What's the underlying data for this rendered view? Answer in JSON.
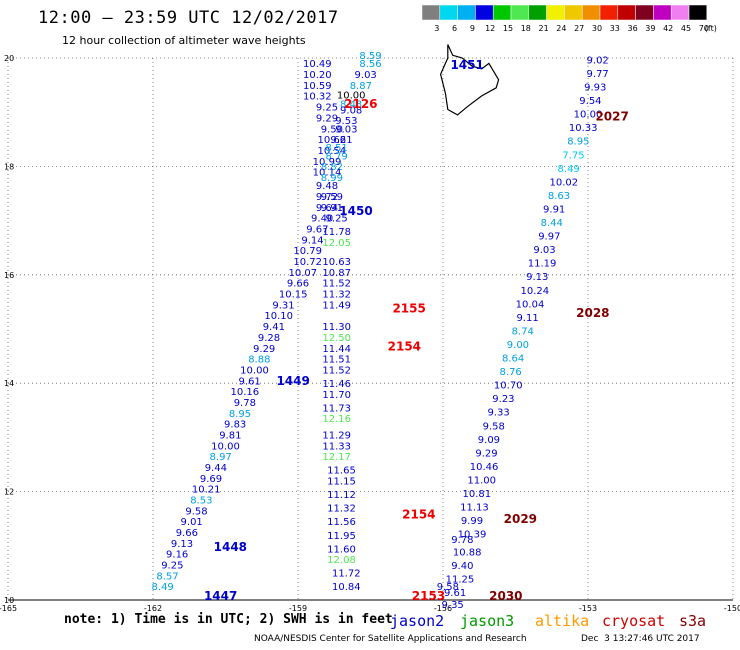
{
  "title": "12:00 – 23:59 UTC 12/02/2017",
  "subtitle": "12 hour collection of altimeter wave heights",
  "note": "note: 1) Time is in UTC; 2) SWH is in feet",
  "credit": "NOAA/NESDIS Center for Satellite Applications and Research",
  "timestamp": "Dec  3 13:27:46 UTC 2017",
  "color_scale": {
    "ticks": [
      "3",
      "6",
      "9",
      "12",
      "15",
      "18",
      "21",
      "24",
      "27",
      "30",
      "33",
      "36",
      "39",
      "42",
      "45",
      "70"
    ],
    "unit": "(ft)",
    "colors": [
      "#7f7f7f",
      "#00d8f0",
      "#00b0f0",
      "#0000e0",
      "#00c800",
      "#50e850",
      "#00a000",
      "#f0f000",
      "#f0c800",
      "#f09000",
      "#f02000",
      "#c00000",
      "#800020",
      "#c000c0",
      "#f080f0",
      "#000000"
    ]
  },
  "legend": [
    {
      "name": "jason2",
      "color": "#0000cc"
    },
    {
      "name": "jason3",
      "color": "#009900"
    },
    {
      "name": "altika",
      "color": "#ff9900"
    },
    {
      "name": "cryosat",
      "color": "#cc0000"
    },
    {
      "name": "s3a",
      "color": "#800000"
    }
  ],
  "axes": {
    "lon_min": -165,
    "lon_max": -150,
    "lat_min": 10,
    "lat_max": 20,
    "x_ticks": [
      "-165",
      "-162",
      "-159",
      "-156",
      "-153",
      "-150"
    ],
    "y_ticks": [
      "10",
      "12",
      "14",
      "16",
      "18",
      "20"
    ]
  },
  "pass_labels": [
    {
      "text": "1451",
      "lon": -155.5,
      "lat": 19.8,
      "color": "#0000cc"
    },
    {
      "text": "2126",
      "lon": -157.7,
      "lat": 19.08,
      "color": "#ee0000"
    },
    {
      "text": "1450",
      "lon": -157.8,
      "lat": 17.1,
      "color": "#0000cc"
    },
    {
      "text": "2155",
      "lon": -156.7,
      "lat": 15.3,
      "color": "#ee0000"
    },
    {
      "text": "2154",
      "lon": -156.8,
      "lat": 14.6,
      "color": "#ee0000"
    },
    {
      "text": "1449",
      "lon": -159.1,
      "lat": 13.97,
      "color": "#0000cc"
    },
    {
      "text": "2154",
      "lon": -156.5,
      "lat": 11.5,
      "color": "#ee0000"
    },
    {
      "text": "1448",
      "lon": -160.4,
      "lat": 10.9,
      "color": "#0000cc"
    },
    {
      "text": "1447",
      "lon": -160.6,
      "lat": 10.0,
      "color": "#0000cc"
    },
    {
      "text": "2153",
      "lon": -156.3,
      "lat": 10.0,
      "color": "#ee0000"
    },
    {
      "text": "2027",
      "lon": -152.5,
      "lat": 18.85,
      "color": "#800000"
    },
    {
      "text": "2028",
      "lon": -152.9,
      "lat": 15.22,
      "color": "#800000"
    },
    {
      "text": "2029",
      "lon": -154.4,
      "lat": 11.42,
      "color": "#800000"
    },
    {
      "text": "2030",
      "lon": -154.7,
      "lat": 10.0,
      "color": "#800000"
    }
  ],
  "observations": [
    {
      "v": "8.59",
      "lon": -157.5,
      "lat": 19.98,
      "c": "#00a0e0"
    },
    {
      "v": "8.56",
      "lon": -157.5,
      "lat": 19.83,
      "c": "#00a0e0"
    },
    {
      "v": "10.49",
      "lon": -158.6,
      "lat": 19.83,
      "c": "#0000cc"
    },
    {
      "v": "10.20",
      "lon": -158.6,
      "lat": 19.63,
      "c": "#0000cc"
    },
    {
      "v": "9.03",
      "lon": -157.6,
      "lat": 19.63,
      "c": "#0000cc"
    },
    {
      "v": "10.59",
      "lon": -158.6,
      "lat": 19.43,
      "c": "#0000cc"
    },
    {
      "v": "8.87",
      "lon": -157.7,
      "lat": 19.43,
      "c": "#00a0e0"
    },
    {
      "v": "10.32",
      "lon": -158.6,
      "lat": 19.23,
      "c": "#0000cc"
    },
    {
      "v": "10.00",
      "lon": -157.9,
      "lat": 19.25,
      "c": "#000000"
    },
    {
      "v": "8.43",
      "lon": -157.9,
      "lat": 19.09,
      "c": "#00a0e0"
    },
    {
      "v": "9.25",
      "lon": -158.4,
      "lat": 19.03,
      "c": "#0000cc"
    },
    {
      "v": "9.08",
      "lon": -157.9,
      "lat": 18.98,
      "c": "#0000cc"
    },
    {
      "v": "9.29",
      "lon": -158.4,
      "lat": 18.83,
      "c": "#0000cc"
    },
    {
      "v": "9.53",
      "lon": -158.0,
      "lat": 18.78,
      "c": "#0000cc"
    },
    {
      "v": "9.50",
      "lon": -158.3,
      "lat": 18.63,
      "c": "#0000cc"
    },
    {
      "v": "9.03",
      "lon": -158.0,
      "lat": 18.63,
      "c": "#0000cc"
    },
    {
      "v": "10.66",
      "lon": -158.3,
      "lat": 18.43,
      "c": "#0000cc"
    },
    {
      "v": "9.21",
      "lon": -158.1,
      "lat": 18.43,
      "c": "#0000cc"
    },
    {
      "v": "10.54",
      "lon": -158.3,
      "lat": 18.23,
      "c": "#0000cc"
    },
    {
      "v": "8.51",
      "lon": -158.2,
      "lat": 18.28,
      "c": "#00a0e0"
    },
    {
      "v": "8.79",
      "lon": -158.2,
      "lat": 18.13,
      "c": "#00a0e0"
    },
    {
      "v": "10.99",
      "lon": -158.4,
      "lat": 18.03,
      "c": "#0000cc"
    },
    {
      "v": "8.82",
      "lon": -158.3,
      "lat": 17.93,
      "c": "#00a0e0"
    },
    {
      "v": "10.14",
      "lon": -158.4,
      "lat": 17.83,
      "c": "#0000cc"
    },
    {
      "v": "8.99",
      "lon": -158.3,
      "lat": 17.73,
      "c": "#00a0e0"
    },
    {
      "v": "9.48",
      "lon": -158.4,
      "lat": 17.58,
      "c": "#0000cc"
    },
    {
      "v": "9.72",
      "lon": -158.4,
      "lat": 17.38,
      "c": "#0000cc"
    },
    {
      "v": "9.59",
      "lon": -158.3,
      "lat": 17.38,
      "c": "#0000cc"
    },
    {
      "v": "9.64",
      "lon": -158.4,
      "lat": 17.18,
      "c": "#0000cc"
    },
    {
      "v": "9.91",
      "lon": -158.3,
      "lat": 17.18,
      "c": "#0000cc"
    },
    {
      "v": "9.40",
      "lon": -158.5,
      "lat": 16.98,
      "c": "#0000cc"
    },
    {
      "v": "9.25",
      "lon": -158.2,
      "lat": 16.98,
      "c": "#0000cc"
    },
    {
      "v": "9.67",
      "lon": -158.6,
      "lat": 16.78,
      "c": "#0000cc"
    },
    {
      "v": "11.78",
      "lon": -158.2,
      "lat": 16.73,
      "c": "#0000cc"
    },
    {
      "v": "9.14",
      "lon": -158.7,
      "lat": 16.58,
      "c": "#0000cc"
    },
    {
      "v": "12.05",
      "lon": -158.2,
      "lat": 16.53,
      "c": "#50e850"
    },
    {
      "v": "10.79",
      "lon": -158.8,
      "lat": 16.38,
      "c": "#0000cc"
    },
    {
      "v": "10.72",
      "lon": -158.8,
      "lat": 16.18,
      "c": "#0000cc"
    },
    {
      "v": "10.63",
      "lon": -158.2,
      "lat": 16.18,
      "c": "#0000cc"
    },
    {
      "v": "10.07",
      "lon": -158.9,
      "lat": 15.98,
      "c": "#0000cc"
    },
    {
      "v": "10.87",
      "lon": -158.2,
      "lat": 15.98,
      "c": "#0000cc"
    },
    {
      "v": "9.66",
      "lon": -159.0,
      "lat": 15.78,
      "c": "#0000cc"
    },
    {
      "v": "11.52",
      "lon": -158.2,
      "lat": 15.78,
      "c": "#0000cc"
    },
    {
      "v": "10.15",
      "lon": -159.1,
      "lat": 15.58,
      "c": "#0000cc"
    },
    {
      "v": "11.32",
      "lon": -158.2,
      "lat": 15.58,
      "c": "#0000cc"
    },
    {
      "v": "9.31",
      "lon": -159.3,
      "lat": 15.38,
      "c": "#0000cc"
    },
    {
      "v": "11.49",
      "lon": -158.2,
      "lat": 15.38,
      "c": "#0000cc"
    },
    {
      "v": "10.10",
      "lon": -159.4,
      "lat": 15.18,
      "c": "#0000cc"
    },
    {
      "v": "11.30",
      "lon": -158.2,
      "lat": 14.98,
      "c": "#0000cc"
    },
    {
      "v": "9.41",
      "lon": -159.5,
      "lat": 14.98,
      "c": "#0000cc"
    },
    {
      "v": "9.28",
      "lon": -159.6,
      "lat": 14.78,
      "c": "#0000cc"
    },
    {
      "v": "12.50",
      "lon": -158.2,
      "lat": 14.78,
      "c": "#50e850"
    },
    {
      "v": "9.29",
      "lon": -159.7,
      "lat": 14.58,
      "c": "#0000cc"
    },
    {
      "v": "11.44",
      "lon": -158.2,
      "lat": 14.58,
      "c": "#0000cc"
    },
    {
      "v": "8.88",
      "lon": -159.8,
      "lat": 14.38,
      "c": "#00a0e0"
    },
    {
      "v": "11.51",
      "lon": -158.2,
      "lat": 14.38,
      "c": "#0000cc"
    },
    {
      "v": "10.00",
      "lon": -159.9,
      "lat": 14.18,
      "c": "#0000cc"
    },
    {
      "v": "11.52",
      "lon": -158.2,
      "lat": 14.18,
      "c": "#0000cc"
    },
    {
      "v": "9.61",
      "lon": -160.0,
      "lat": 13.98,
      "c": "#0000cc"
    },
    {
      "v": "11.46",
      "lon": -158.2,
      "lat": 13.93,
      "c": "#0000cc"
    },
    {
      "v": "10.16",
      "lon": -160.1,
      "lat": 13.78,
      "c": "#0000cc"
    },
    {
      "v": "9.78",
      "lon": -160.1,
      "lat": 13.58,
      "c": "#0000cc"
    },
    {
      "v": "11.70",
      "lon": -158.2,
      "lat": 13.73,
      "c": "#0000cc"
    },
    {
      "v": "8.95",
      "lon": -160.2,
      "lat": 13.38,
      "c": "#00a0e0"
    },
    {
      "v": "11.73",
      "lon": -158.2,
      "lat": 13.48,
      "c": "#0000cc"
    },
    {
      "v": "9.83",
      "lon": -160.3,
      "lat": 13.18,
      "c": "#0000cc"
    },
    {
      "v": "12.16",
      "lon": -158.2,
      "lat": 13.28,
      "c": "#50e850"
    },
    {
      "v": "9.81",
      "lon": -160.4,
      "lat": 12.98,
      "c": "#0000cc"
    },
    {
      "v": "11.29",
      "lon": -158.2,
      "lat": 12.98,
      "c": "#0000cc"
    },
    {
      "v": "10.00",
      "lon": -160.5,
      "lat": 12.78,
      "c": "#0000cc"
    },
    {
      "v": "11.33",
      "lon": -158.2,
      "lat": 12.78,
      "c": "#0000cc"
    },
    {
      "v": "8.97",
      "lon": -160.6,
      "lat": 12.58,
      "c": "#00a0e0"
    },
    {
      "v": "12.17",
      "lon": -158.2,
      "lat": 12.58,
      "c": "#50e850"
    },
    {
      "v": "9.44",
      "lon": -160.7,
      "lat": 12.38,
      "c": "#0000cc"
    },
    {
      "v": "11.65",
      "lon": -158.1,
      "lat": 12.33,
      "c": "#0000cc"
    },
    {
      "v": "9.69",
      "lon": -160.8,
      "lat": 12.18,
      "c": "#0000cc"
    },
    {
      "v": "11.15",
      "lon": -158.1,
      "lat": 12.13,
      "c": "#0000cc"
    },
    {
      "v": "10.21",
      "lon": -160.9,
      "lat": 11.98,
      "c": "#0000cc"
    },
    {
      "v": "11.12",
      "lon": -158.1,
      "lat": 11.88,
      "c": "#0000cc"
    },
    {
      "v": "8.53",
      "lon": -161.0,
      "lat": 11.78,
      "c": "#00a0e0"
    },
    {
      "v": "9.58",
      "lon": -161.1,
      "lat": 11.58,
      "c": "#0000cc"
    },
    {
      "v": "11.32",
      "lon": -158.1,
      "lat": 11.63,
      "c": "#0000cc"
    },
    {
      "v": "9.01",
      "lon": -161.2,
      "lat": 11.38,
      "c": "#0000cc"
    },
    {
      "v": "11.56",
      "lon": -158.1,
      "lat": 11.38,
      "c": "#0000cc"
    },
    {
      "v": "9.66",
      "lon": -161.3,
      "lat": 11.18,
      "c": "#0000cc"
    },
    {
      "v": "11.95",
      "lon": -158.1,
      "lat": 11.13,
      "c": "#0000cc"
    },
    {
      "v": "9.13",
      "lon": -161.4,
      "lat": 10.98,
      "c": "#0000cc"
    },
    {
      "v": "11.60",
      "lon": -158.1,
      "lat": 10.88,
      "c": "#0000cc"
    },
    {
      "v": "9.16",
      "lon": -161.5,
      "lat": 10.78,
      "c": "#0000cc"
    },
    {
      "v": "12.08",
      "lon": -158.1,
      "lat": 10.68,
      "c": "#50e850"
    },
    {
      "v": "9.25",
      "lon": -161.6,
      "lat": 10.58,
      "c": "#0000cc"
    },
    {
      "v": "11.72",
      "lon": -158.0,
      "lat": 10.43,
      "c": "#0000cc"
    },
    {
      "v": "8.57",
      "lon": -161.7,
      "lat": 10.38,
      "c": "#00a0e0"
    },
    {
      "v": "8.49",
      "lon": -161.8,
      "lat": 10.18,
      "c": "#00a0e0"
    },
    {
      "v": "10.84",
      "lon": -158.0,
      "lat": 10.18,
      "c": "#0000cc"
    },
    {
      "v": "9.58",
      "lon": -155.9,
      "lat": 10.18,
      "c": "#0000cc"
    },
    {
      "v": "9.02",
      "lon": -152.8,
      "lat": 19.9,
      "c": "#0000cc"
    },
    {
      "v": "9.77",
      "lon": -152.8,
      "lat": 19.65,
      "c": "#0000cc"
    },
    {
      "v": "9.93",
      "lon": -152.85,
      "lat": 19.4,
      "c": "#0000cc"
    },
    {
      "v": "9.54",
      "lon": -152.95,
      "lat": 19.15,
      "c": "#0000cc"
    },
    {
      "v": "10.00",
      "lon": -153.0,
      "lat": 18.9,
      "c": "#0000cc"
    },
    {
      "v": "10.33",
      "lon": -153.1,
      "lat": 18.65,
      "c": "#0000cc"
    },
    {
      "v": "8.95",
      "lon": -153.2,
      "lat": 18.4,
      "c": "#00a0e0"
    },
    {
      "v": "7.75",
      "lon": -153.3,
      "lat": 18.15,
      "c": "#00c8f0"
    },
    {
      "v": "8.49",
      "lon": -153.4,
      "lat": 17.9,
      "c": "#00c8f0"
    },
    {
      "v": "10.02",
      "lon": -153.5,
      "lat": 17.65,
      "c": "#0000cc"
    },
    {
      "v": "8.63",
      "lon": -153.6,
      "lat": 17.4,
      "c": "#00a0e0"
    },
    {
      "v": "9.91",
      "lon": -153.7,
      "lat": 17.15,
      "c": "#0000cc"
    },
    {
      "v": "8.44",
      "lon": -153.75,
      "lat": 16.9,
      "c": "#00a0e0"
    },
    {
      "v": "9.97",
      "lon": -153.8,
      "lat": 16.65,
      "c": "#0000cc"
    },
    {
      "v": "9.03",
      "lon": -153.9,
      "lat": 16.4,
      "c": "#0000cc"
    },
    {
      "v": "11.19",
      "lon": -153.95,
      "lat": 16.15,
      "c": "#0000cc"
    },
    {
      "v": "9.13",
      "lon": -154.05,
      "lat": 15.9,
      "c": "#0000cc"
    },
    {
      "v": "10.24",
      "lon": -154.1,
      "lat": 15.65,
      "c": "#0000cc"
    },
    {
      "v": "10.04",
      "lon": -154.2,
      "lat": 15.4,
      "c": "#0000cc"
    },
    {
      "v": "9.11",
      "lon": -154.25,
      "lat": 15.15,
      "c": "#0000cc"
    },
    {
      "v": "8.74",
      "lon": -154.35,
      "lat": 14.9,
      "c": "#00a0e0"
    },
    {
      "v": "9.00",
      "lon": -154.45,
      "lat": 14.65,
      "c": "#00a0e0"
    },
    {
      "v": "8.64",
      "lon": -154.55,
      "lat": 14.4,
      "c": "#00a0e0"
    },
    {
      "v": "8.76",
      "lon": -154.6,
      "lat": 14.15,
      "c": "#00a0e0"
    },
    {
      "v": "10.70",
      "lon": -154.65,
      "lat": 13.9,
      "c": "#0000cc"
    },
    {
      "v": "9.23",
      "lon": -154.75,
      "lat": 13.65,
      "c": "#0000cc"
    },
    {
      "v": "9.33",
      "lon": -154.85,
      "lat": 13.4,
      "c": "#0000cc"
    },
    {
      "v": "9.58",
      "lon": -154.95,
      "lat": 13.15,
      "c": "#0000cc"
    },
    {
      "v": "9.09",
      "lon": -155.05,
      "lat": 12.9,
      "c": "#0000cc"
    },
    {
      "v": "9.29",
      "lon": -155.1,
      "lat": 12.65,
      "c": "#0000cc"
    },
    {
      "v": "10.46",
      "lon": -155.15,
      "lat": 12.4,
      "c": "#0000cc"
    },
    {
      "v": "11.00",
      "lon": -155.2,
      "lat": 12.15,
      "c": "#0000cc"
    },
    {
      "v": "10.81",
      "lon": -155.3,
      "lat": 11.9,
      "c": "#0000cc"
    },
    {
      "v": "11.13",
      "lon": -155.35,
      "lat": 11.65,
      "c": "#0000cc"
    },
    {
      "v": "9.99",
      "lon": -155.4,
      "lat": 11.4,
      "c": "#0000cc"
    },
    {
      "v": "10.39",
      "lon": -155.4,
      "lat": 11.15,
      "c": "#0000cc"
    },
    {
      "v": "9.78",
      "lon": -155.6,
      "lat": 11.05,
      "c": "#0000cc"
    },
    {
      "v": "10.88",
      "lon": -155.5,
      "lat": 10.82,
      "c": "#0000cc"
    },
    {
      "v": "9.40",
      "lon": -155.6,
      "lat": 10.57,
      "c": "#0000cc"
    },
    {
      "v": "11.25",
      "lon": -155.65,
      "lat": 10.32,
      "c": "#0000cc"
    },
    {
      "v": "9.61",
      "lon": -155.75,
      "lat": 10.07,
      "c": "#0000cc"
    },
    {
      "v": "9.35",
      "lon": -155.8,
      "lat": 9.85,
      "c": "#0000cc"
    }
  ]
}
